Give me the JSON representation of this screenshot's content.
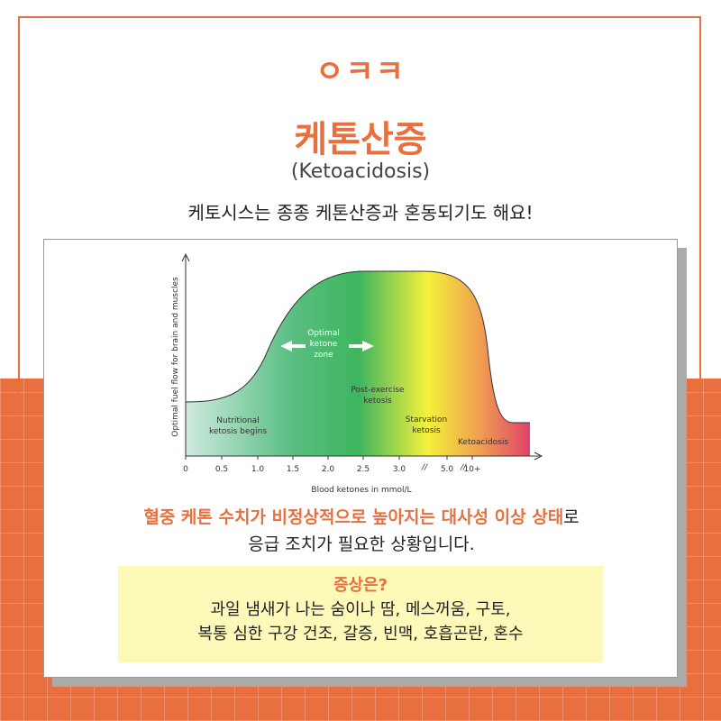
{
  "logo": "ㅇㅋㅋ",
  "title": "케톤산증",
  "title_english": "(Ketoacidosis)",
  "subtitle": "케토시스는 종종 케톤산증과 혼동되기도 해요!",
  "figure": {
    "y_axis_label": "Optimal fuel flow for brain and muscles",
    "x_axis_label": "Blood ketones in mmol/L",
    "x_tick_labels": [
      "0",
      "0.5",
      "1.0",
      "1.5",
      "2.0",
      "2.5",
      "3.0",
      "5.0",
      "10+"
    ],
    "annotations": [
      {
        "lines": [
          "Nutritional",
          "ketosis begins"
        ]
      },
      {
        "lines": [
          "Optimal",
          "ketone",
          "zone"
        ]
      },
      {
        "lines": [
          "Post-exercise",
          "ketosis"
        ]
      },
      {
        "lines": [
          "Starvation",
          "ketosis"
        ]
      },
      {
        "lines": [
          "Ketoacidosis"
        ]
      }
    ]
  },
  "description": {
    "highlight": "혈중 케톤 수치가 비정상적으로 높아지는 대사성 이상 상태",
    "highlight_suffix": "로",
    "line2": "응급 조치가 필요한 상황입니다."
  },
  "symptoms": {
    "heading": "증상은?",
    "lines": [
      "과일 냄새가 나는 숨이나 땀, 메스꺼움, 구토,",
      "복통 심한 구강 건조, 갈증, 빈맥, 호흡곤란, 혼수"
    ]
  }
}
